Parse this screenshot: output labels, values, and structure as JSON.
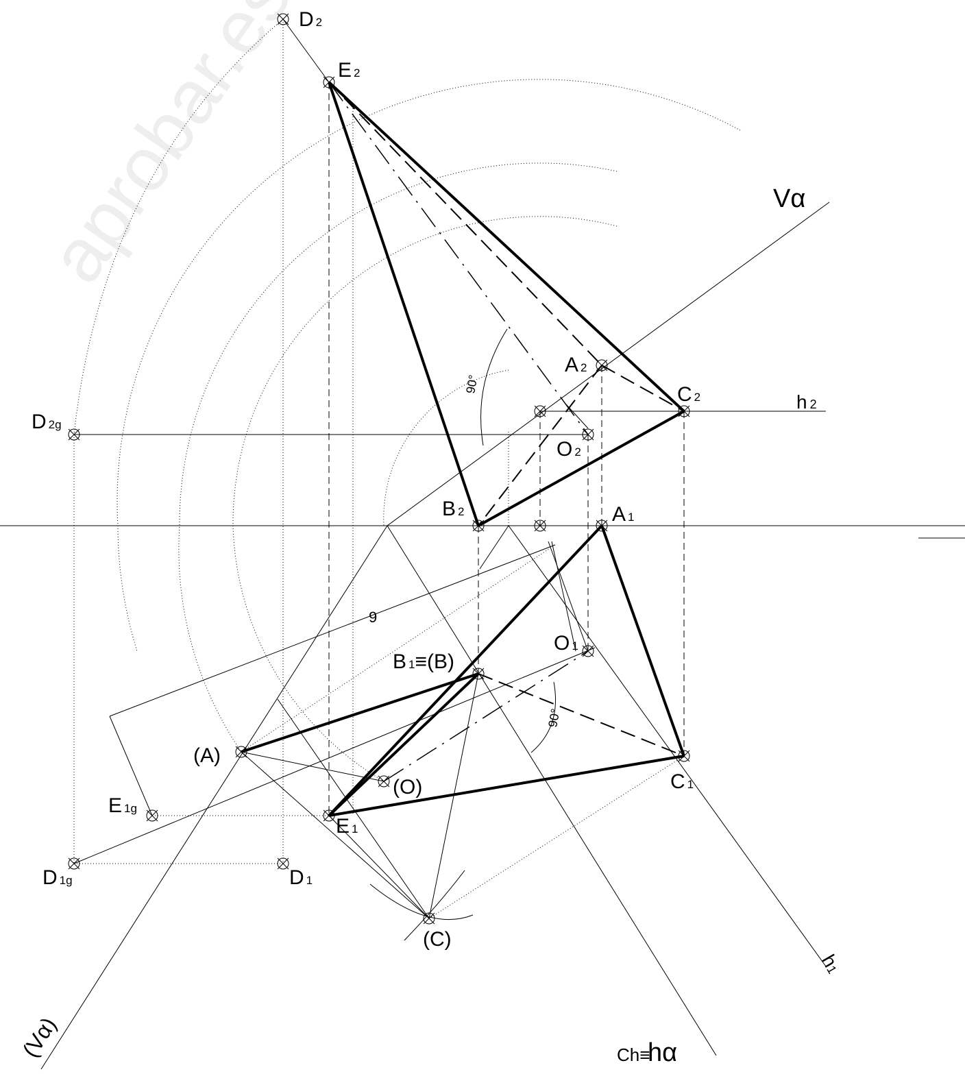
{
  "points": [
    {
      "label": "D",
      "sub": "2"
    },
    {
      "label": "E",
      "sub": "2"
    },
    {
      "label": "A",
      "sub": "2"
    },
    {
      "label": "C",
      "sub": "2"
    },
    {
      "label": "O",
      "sub": "2"
    },
    {
      "label": "D",
      "sub": "2g"
    },
    {
      "label": "B",
      "sub": "2"
    },
    {
      "label": "A",
      "sub": "1"
    },
    {
      "label": "O",
      "sub": "1"
    },
    {
      "label": "B",
      "sub": "1",
      "suffix": "≡(B)"
    },
    {
      "label": "(A)"
    },
    {
      "label": "C",
      "sub": "1"
    },
    {
      "label": "(O)"
    },
    {
      "label": "E",
      "sub": "1g"
    },
    {
      "label": "E",
      "sub": "1"
    },
    {
      "label": "D",
      "sub": "1g"
    },
    {
      "label": "D",
      "sub": "1"
    },
    {
      "label": "(C)"
    }
  ],
  "traces": {
    "v_alpha": "Vα",
    "h2": "h",
    "h2_sub": "2",
    "h1": "h",
    "h1_sub": "1",
    "v_alpha_folded": "(Vα)",
    "ch": "Ch≡",
    "h_alpha": "hα"
  },
  "dimension": "9",
  "angle_1": "90°",
  "angle_2": "90°",
  "watermark": "aprobar.es"
}
